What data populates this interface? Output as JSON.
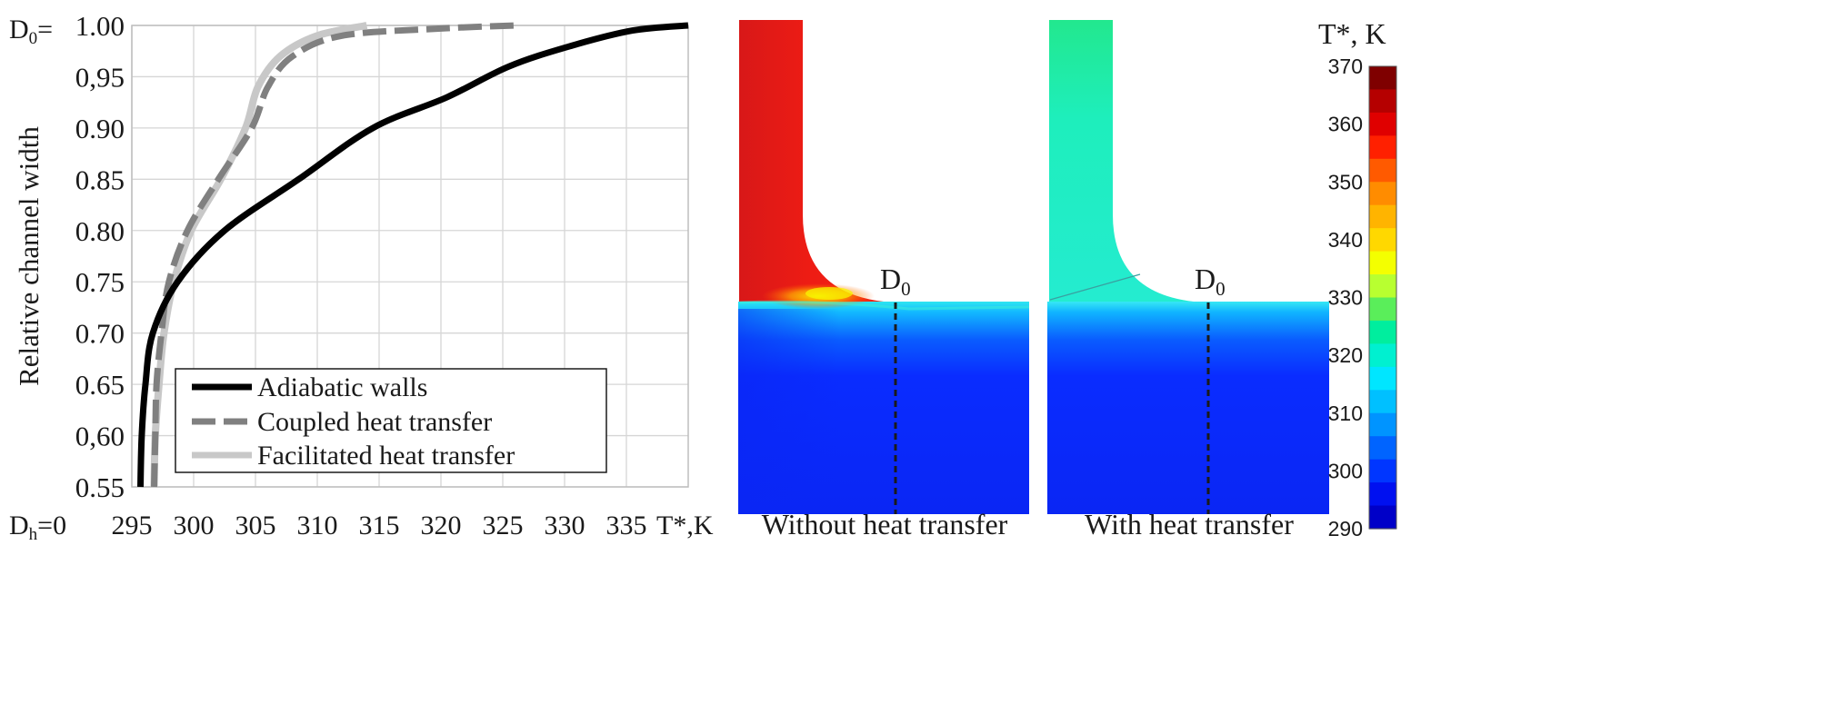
{
  "chart_data": [
    {
      "type": "line",
      "title": "",
      "xlabel": "T*,K",
      "ylabel": "Relative channel width",
      "xlim": [
        295,
        340
      ],
      "ylim": [
        0.55,
        1.0
      ],
      "grid": true,
      "legend": "bottom-left",
      "x_ticks": [
        "295",
        "300",
        "305",
        "310",
        "315",
        "320",
        "325",
        "330",
        "335"
      ],
      "y_ticks": [
        "0.55",
        "0,60",
        "0.65",
        "0.70",
        "0.75",
        "0.80",
        "0.85",
        "0.90",
        "0,95",
        "1.00"
      ],
      "y_top_label_prefix": "D",
      "y_top_label_sub": "0",
      "y_top_label_suffix": "=",
      "y_bottom_label_prefix": "D",
      "y_bottom_label_sub": "h",
      "y_bottom_label_suffix": "=0",
      "series": [
        {
          "name": "Adiabatic walls",
          "color": "#000000",
          "style": "solid",
          "points": [
            [
              295.7,
              0.55
            ],
            [
              295.8,
              0.6
            ],
            [
              296.1,
              0.65
            ],
            [
              296.7,
              0.7
            ],
            [
              298.7,
              0.75
            ],
            [
              302.5,
              0.8
            ],
            [
              308.5,
              0.85
            ],
            [
              314.5,
              0.9
            ],
            [
              320.5,
              0.93
            ],
            [
              325.5,
              0.96
            ],
            [
              330.5,
              0.98
            ],
            [
              335.5,
              0.995
            ],
            [
              340,
              1.0
            ]
          ]
        },
        {
          "name": "Coupled heat transfer",
          "color": "#808080",
          "style": "dashed",
          "points": [
            [
              296.8,
              0.55
            ],
            [
              296.9,
              0.6
            ],
            [
              297.0,
              0.65
            ],
            [
              297.4,
              0.7
            ],
            [
              298.0,
              0.75
            ],
            [
              299.5,
              0.8
            ],
            [
              302.0,
              0.85
            ],
            [
              304.7,
              0.9
            ],
            [
              306.0,
              0.94
            ],
            [
              308.0,
              0.97
            ],
            [
              312.0,
              0.99
            ],
            [
              320.0,
              0.997
            ],
            [
              326.0,
              1.0
            ]
          ]
        },
        {
          "name": "Facilitated heat transfer",
          "color": "#c8c8c8",
          "style": "solid",
          "points": [
            [
              296.8,
              0.55
            ],
            [
              296.9,
              0.6
            ],
            [
              297.2,
              0.65
            ],
            [
              297.6,
              0.7
            ],
            [
              298.4,
              0.75
            ],
            [
              299.8,
              0.8
            ],
            [
              302.2,
              0.85
            ],
            [
              304.2,
              0.9
            ],
            [
              305.2,
              0.94
            ],
            [
              307.0,
              0.97
            ],
            [
              310.0,
              0.99
            ],
            [
              314.0,
              1.0
            ]
          ]
        }
      ]
    },
    {
      "type": "heatmap",
      "title": "Without heat transfer",
      "annotation": "D",
      "annotation_sub": "0",
      "regions": [
        {
          "name": "inlet-channel",
          "approx_temperature_K": 360
        },
        {
          "name": "outlet-channel",
          "approx_temperature_K": 294
        }
      ]
    },
    {
      "type": "heatmap",
      "title": "With heat transfer",
      "annotation": "D",
      "annotation_sub": "0",
      "regions": [
        {
          "name": "inlet-channel",
          "approx_temperature_K": 323
        },
        {
          "name": "outlet-channel",
          "approx_temperature_K": 294
        }
      ]
    },
    {
      "type": "colorbar",
      "title": "T*, K",
      "range": [
        290,
        370
      ],
      "tick_labels": [
        "370",
        "360",
        "350",
        "340",
        "330",
        "320",
        "310",
        "300",
        "290"
      ],
      "colors": [
        "#7f0000",
        "#b50000",
        "#e00000",
        "#ff2000",
        "#ff5a00",
        "#ff8c00",
        "#ffb400",
        "#ffd800",
        "#f4ff00",
        "#b8ff30",
        "#5aee5a",
        "#00ee9e",
        "#00f0d0",
        "#00e6ff",
        "#00c0ff",
        "#0094ff",
        "#0064ff",
        "#0036ff",
        "#0010f0",
        "#0000c8"
      ]
    }
  ]
}
